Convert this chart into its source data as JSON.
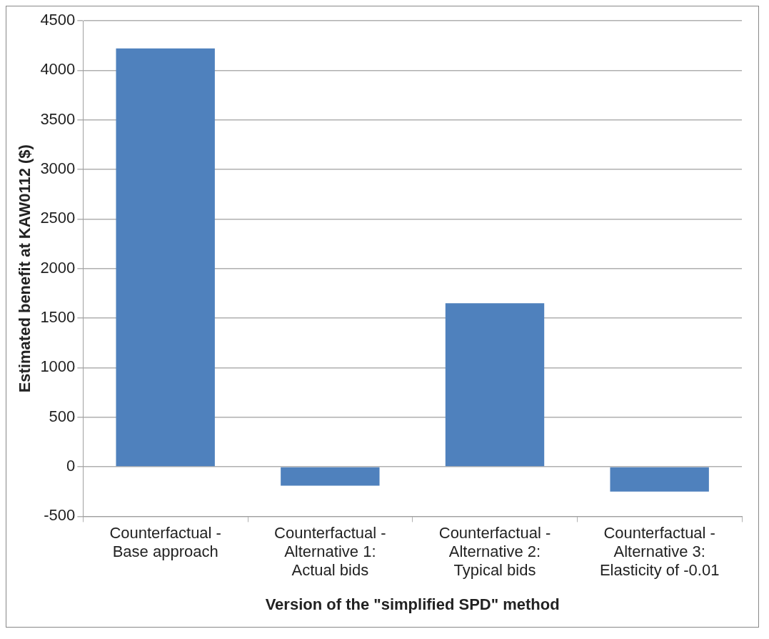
{
  "chart_data": {
    "type": "bar",
    "categories": [
      "Counterfactual -\nBase approach",
      "Counterfactual -\nAlternative 1:\nActual bids",
      "Counterfactual -\nAlternative 2:\nTypical bids",
      "Counterfactual -\nAlternative 3:\nElasticity of -0.01"
    ],
    "values": [
      4220,
      -190,
      1650,
      -250
    ],
    "color": "#4f81bd",
    "xlabel": "Version of the \"simplified SPD\" method",
    "ylabel": "Estimated benefit at KAW0112 ($)",
    "ylim": [
      -500,
      4500
    ],
    "yticks": [
      -500,
      0,
      500,
      1000,
      1500,
      2000,
      2500,
      3000,
      3500,
      4000,
      4500
    ],
    "grid": "y",
    "legend": false
  }
}
